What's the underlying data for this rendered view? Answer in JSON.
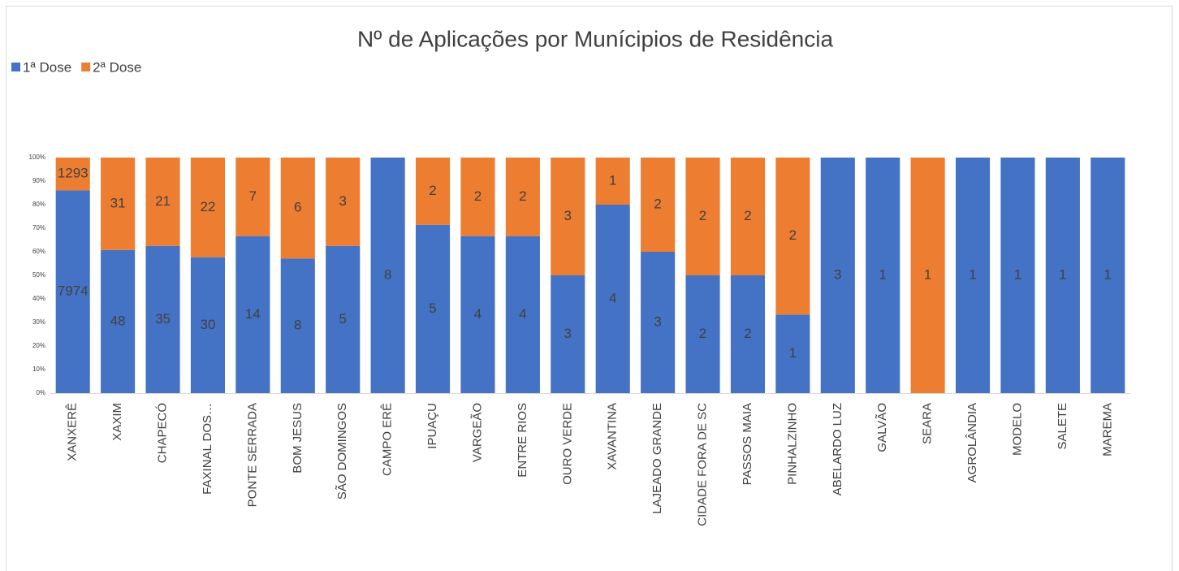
{
  "chart_data": {
    "type": "bar",
    "stacked": "percent",
    "title": "Nº de Aplicações por Munícipios de Residência",
    "legend": "top-left",
    "categories": [
      "XANXERÊ",
      "XAXIM",
      "CHAPECÓ",
      "FAXINAL DOS…",
      "PONTE SERRADA",
      "BOM JESUS",
      "SÃO DOMINGOS",
      "CAMPO ERÊ",
      "IPUAÇU",
      "VARGEÃO",
      "ENTRE RIOS",
      "OURO VERDE",
      "XAVANTINA",
      "LAJEADO GRANDE",
      "CIDADE FORA DE SC",
      "PASSOS MAIA",
      "PINHALZINHO",
      "ABELARDO LUZ",
      "GALVÃO",
      "SEARA",
      "AGROLÂNDIA",
      "MODELO",
      "SALETE",
      "MAREMA"
    ],
    "series": [
      {
        "name": "1ª Dose",
        "color": "#4472c4",
        "values": [
          7974,
          48,
          35,
          30,
          14,
          8,
          5,
          8,
          5,
          4,
          4,
          3,
          4,
          3,
          2,
          2,
          1,
          3,
          1,
          0,
          1,
          1,
          1,
          1
        ]
      },
      {
        "name": "2ª Dose",
        "color": "#ed7d31",
        "values": [
          1293,
          31,
          21,
          22,
          7,
          6,
          3,
          0,
          2,
          2,
          2,
          3,
          1,
          2,
          2,
          2,
          2,
          0,
          0,
          1,
          0,
          0,
          0,
          0
        ]
      }
    ],
    "ylim": [
      0,
      100
    ],
    "yticks": [
      {
        "value": 0,
        "label": "0%"
      },
      {
        "value": 10,
        "label": "10%"
      },
      {
        "value": 20,
        "label": "20%"
      },
      {
        "value": 30,
        "label": "30%"
      },
      {
        "value": 40,
        "label": "40%"
      },
      {
        "value": 50,
        "label": "50%"
      },
      {
        "value": 60,
        "label": "60%"
      },
      {
        "value": 70,
        "label": "70%"
      },
      {
        "value": 80,
        "label": "80%"
      },
      {
        "value": 90,
        "label": "90%"
      },
      {
        "value": 100,
        "label": "100%"
      }
    ],
    "grid": false
  }
}
